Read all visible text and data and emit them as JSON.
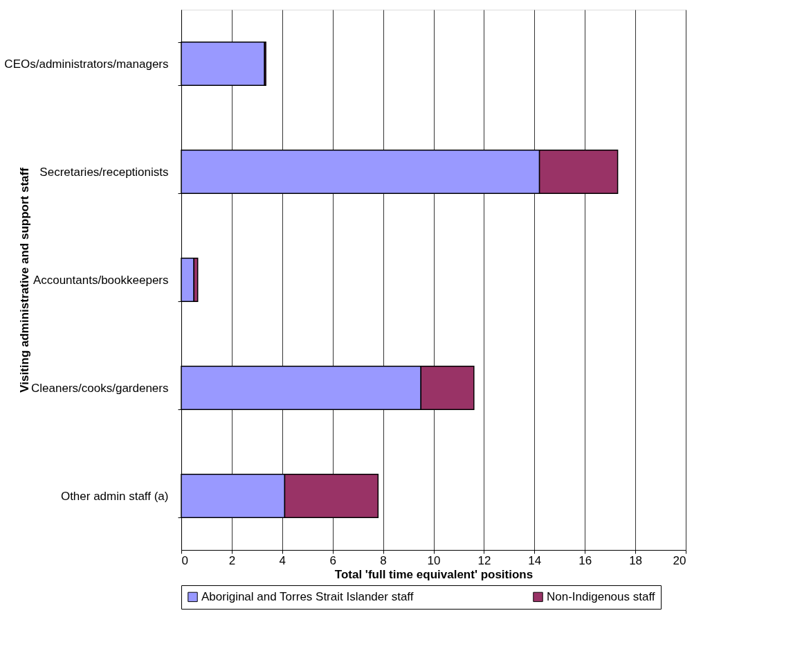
{
  "chart_data": {
    "type": "bar",
    "orientation": "horizontal",
    "stacked": true,
    "xlabel": "Total 'full time equivalent' positions",
    "ylabel": "Visiting administrative and support staff",
    "categories": [
      "CEOs/administrators/managers",
      "Secretaries/receptionists",
      "Accountants/bookkeepers",
      "Cleaners/cooks/gardeners",
      "Other admin staff (a)"
    ],
    "series": [
      {
        "name": "Aboriginal and Torres Strait Islander staff",
        "color": "#9999ff",
        "values": [
          3.3,
          14.2,
          0.5,
          9.5,
          4.1
        ]
      },
      {
        "name": "Non-Indigenous staff",
        "color": "#993366",
        "values": [
          0.05,
          3.1,
          0.15,
          2.1,
          3.7
        ]
      }
    ],
    "xlim": [
      0,
      20
    ],
    "xticks": [
      0,
      2,
      4,
      6,
      8,
      10,
      12,
      14,
      16,
      18,
      20
    ],
    "grid": "x",
    "legend": "bottom"
  }
}
